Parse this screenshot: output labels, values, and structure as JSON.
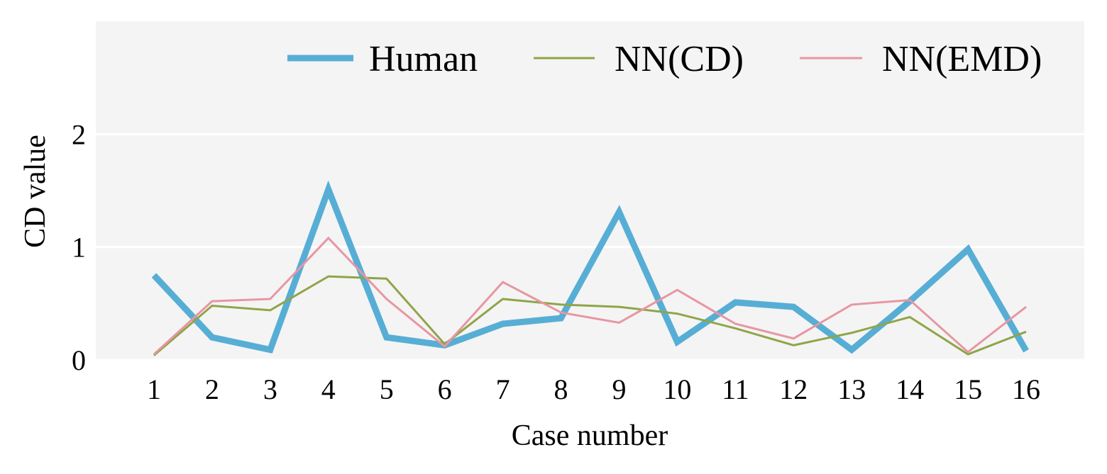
{
  "chart_data": {
    "type": "line",
    "title": "",
    "xlabel": "Case number",
    "ylabel": "CD value",
    "categories": [
      "1",
      "2",
      "3",
      "4",
      "5",
      "6",
      "7",
      "8",
      "9",
      "10",
      "11",
      "12",
      "13",
      "14",
      "15",
      "16"
    ],
    "x_range": [
      0,
      17
    ],
    "ylim": [
      0,
      3
    ],
    "y_ticks": [
      0,
      1,
      2
    ],
    "grid": "horizontal",
    "legend_position": "top-right",
    "background": "#f4f4f4",
    "series": [
      {
        "name": "Human",
        "color": "#57aed5",
        "values": [
          0.75,
          0.2,
          0.09,
          1.51,
          0.2,
          0.13,
          0.32,
          0.37,
          1.31,
          0.16,
          0.51,
          0.47,
          0.09,
          0.52,
          0.98,
          0.08
        ]
      },
      {
        "name": "NN(CD)",
        "color": "#8fa548",
        "values": [
          0.04,
          0.48,
          0.44,
          0.74,
          0.72,
          0.14,
          0.54,
          0.49,
          0.47,
          0.41,
          0.28,
          0.13,
          0.24,
          0.38,
          0.05,
          0.25
        ]
      },
      {
        "name": "NN(EMD)",
        "color": "#e796a2",
        "values": [
          0.05,
          0.52,
          0.54,
          1.08,
          0.54,
          0.12,
          0.69,
          0.42,
          0.33,
          0.62,
          0.32,
          0.19,
          0.49,
          0.53,
          0.07,
          0.47
        ]
      }
    ]
  }
}
